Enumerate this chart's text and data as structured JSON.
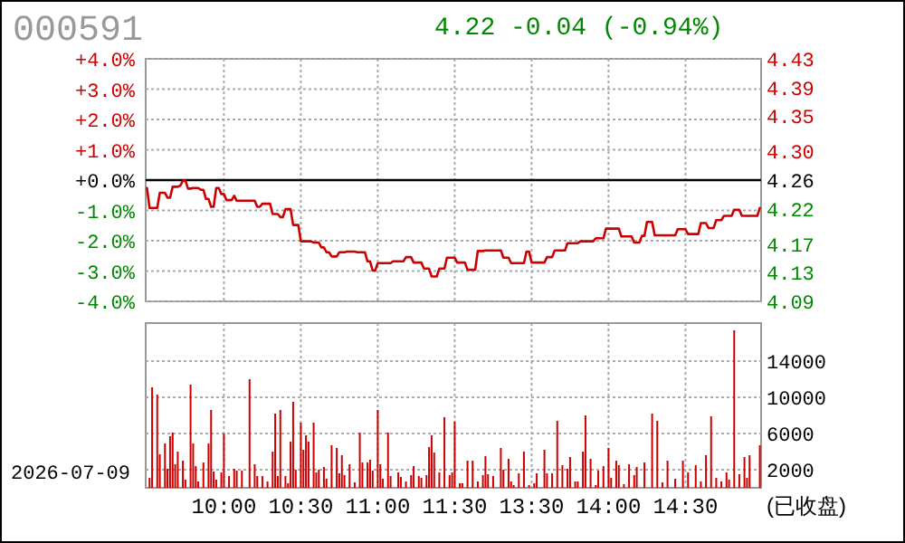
{
  "chart_data": [
    {
      "type": "line",
      "title": "000591",
      "subtitle": "4.22 -0.04 (-0.94%)",
      "categories": [
        null,
        null,
        null,
        null,
        null,
        null,
        null,
        null,
        null,
        null,
        null,
        null,
        null,
        null,
        null,
        null,
        null,
        null,
        null,
        null,
        null,
        null,
        null,
        null,
        null,
        null,
        null,
        null,
        null,
        null,
        null,
        null,
        null,
        null,
        null,
        null,
        null,
        null,
        null,
        null,
        null,
        null,
        null,
        null,
        null,
        null,
        null,
        null,
        null,
        null,
        null,
        null,
        null,
        null,
        null,
        null,
        null,
        null,
        null,
        null,
        null,
        null,
        null,
        null,
        null,
        null,
        null,
        null,
        null,
        null,
        null,
        null,
        null,
        null,
        null,
        null,
        null,
        null,
        null,
        null,
        null,
        null,
        null,
        null,
        null,
        null,
        null,
        null,
        null,
        null,
        null,
        null,
        null,
        null,
        null,
        null,
        null,
        null,
        null,
        null,
        null,
        null,
        null,
        null,
        null,
        null,
        null,
        null,
        null,
        null,
        null,
        null,
        null,
        null,
        null,
        null,
        null,
        null,
        null,
        null,
        null,
        null,
        null,
        null,
        null,
        null,
        null,
        null,
        null,
        null,
        null,
        null,
        null,
        null,
        null,
        null,
        null,
        null,
        null,
        null,
        null,
        null,
        null,
        null,
        null,
        null,
        null,
        null,
        null,
        null,
        null,
        null,
        null,
        null,
        null,
        null,
        null,
        null,
        null,
        null,
        null,
        null,
        null,
        null,
        null,
        null,
        null,
        null,
        null,
        null,
        null,
        null,
        null,
        null,
        null,
        null,
        null,
        null,
        null,
        null,
        null,
        null,
        null,
        null,
        null,
        null,
        null,
        null,
        null,
        null,
        null,
        null,
        null,
        null,
        null,
        null,
        null,
        null,
        null,
        null,
        null,
        null,
        null,
        null,
        null,
        null,
        null,
        null,
        null,
        null,
        null,
        null,
        null,
        null,
        null,
        null,
        null,
        null,
        null,
        null,
        null,
        null,
        null,
        null,
        null,
        null,
        null,
        null,
        null,
        null,
        null,
        null,
        null,
        null,
        null,
        null,
        null,
        null,
        null,
        null
      ],
      "ylim": [
        -4,
        4
      ],
      "yticks": [
        {
          "value": 4,
          "label": "+4.0%"
        },
        {
          "value": 3,
          "label": "+3.0%"
        },
        {
          "value": 2,
          "label": "+2.0%"
        },
        {
          "value": 1,
          "label": "+1.0%"
        },
        {
          "value": 0,
          "label": "+0.0%"
        },
        {
          "value": -1,
          "label": "-1.0%"
        },
        {
          "value": -2,
          "label": "-2.0%"
        },
        {
          "value": -3,
          "label": "-3.0%"
        },
        {
          "value": -4,
          "label": "-4.0%"
        }
      ],
      "y2lim": [
        4.09,
        4.43
      ],
      "y2ticks": [
        4.43,
        4.39,
        4.35,
        {
          "value": 4.3,
          "label": "4.30"
        },
        4.26,
        4.22,
        4.17,
        4.13,
        4.09
      ],
      "tick_labels": "y",
      "grid": true,
      "ref_lines": [
        {
          "axis": "y",
          "value": 0,
          "color": "#000000"
        }
      ],
      "series": [
        {
          "color": "#cc0000",
          "values": [
            -0.26,
            -0.92,
            -0.92,
            -0.92,
            -0.92,
            -0.42,
            -0.42,
            -0.42,
            -0.58,
            -0.58,
            -0.22,
            -0.22,
            -0.22,
            -0.18,
            -0.02,
            -0.02,
            -0.28,
            -0.28,
            -0.26,
            -0.26,
            -0.26,
            -0.32,
            -0.32,
            -0.62,
            -0.62,
            -0.88,
            -0.88,
            -0.26,
            -0.26,
            -0.46,
            -0.46,
            -0.66,
            -0.66,
            -0.66,
            -0.52,
            -0.68,
            -0.68,
            -0.68,
            -0.68,
            -0.68,
            -0.68,
            -0.68,
            -0.68,
            -0.88,
            -0.88,
            -0.78,
            -0.78,
            -0.78,
            -0.78,
            -1.12,
            -1.12,
            -1.12,
            -1.22,
            -1.22,
            -0.96,
            -0.96,
            -0.96,
            -1.48,
            -1.48,
            -1.48,
            -2.02,
            -2.02,
            -2.02,
            -2.02,
            -2.02,
            -2.06,
            -2.06,
            -2.06,
            -2.22,
            -2.22,
            -2.38,
            -2.38,
            -2.52,
            -2.52,
            -2.52,
            -2.38,
            -2.38,
            -2.38,
            -2.36,
            -2.36,
            -2.36,
            -2.36,
            -2.38,
            -2.38,
            -2.38,
            -2.38,
            -2.68,
            -2.68,
            -2.98,
            -2.98,
            -2.74,
            -2.74,
            -2.74,
            -2.74,
            -2.74,
            -2.74,
            -2.68,
            -2.68,
            -2.68,
            -2.68,
            -2.68,
            -2.54,
            -2.54,
            -2.54,
            -2.72,
            -2.72,
            -2.72,
            -2.72,
            -2.92,
            -2.92,
            -2.92,
            -3.18,
            -3.18,
            -3.18,
            -2.92,
            -2.92,
            -2.92,
            -2.56,
            -2.56,
            -2.56,
            -2.56,
            -2.72,
            -2.72,
            -2.72,
            -2.72,
            -2.96,
            -2.96,
            -2.96,
            -2.96,
            -2.34,
            -2.34,
            -2.34,
            -2.32,
            -2.32,
            -2.32,
            -2.32,
            -2.32,
            -2.32,
            -2.32,
            -2.56,
            -2.56,
            -2.56,
            -2.74,
            -2.74,
            -2.74,
            -2.74,
            -2.74,
            -2.74,
            -2.36,
            -2.36,
            -2.72,
            -2.72,
            -2.72,
            -2.72,
            -2.72,
            -2.72,
            -2.54,
            -2.54,
            -2.54,
            -2.32,
            -2.32,
            -2.32,
            -2.32,
            -2.32,
            -2.08,
            -2.08,
            -2.08,
            -2.08,
            -2.08,
            -2.02,
            -2.02,
            -2.02,
            -2.02,
            -2.02,
            -2.02,
            -1.92,
            -1.92,
            -1.92,
            -1.92,
            -1.6,
            -1.6,
            -1.6,
            -1.6,
            -1.6,
            -1.6,
            -1.86,
            -1.86,
            -1.86,
            -1.86,
            -1.86,
            -2.06,
            -2.06,
            -2.06,
            -1.84,
            -1.84,
            -1.38,
            -1.38,
            -1.38,
            -1.82,
            -1.82,
            -1.82,
            -1.82,
            -1.82,
            -1.82,
            -1.82,
            -1.82,
            -1.82,
            -1.62,
            -1.62,
            -1.62,
            -1.62,
            -1.78,
            -1.78,
            -1.78,
            -1.78,
            -1.78,
            -1.42,
            -1.42,
            -1.42,
            -1.58,
            -1.58,
            -1.58,
            -1.32,
            -1.32,
            -1.32,
            -1.18,
            -1.18,
            -1.18,
            -1.18,
            -0.98,
            -0.98,
            -0.98,
            -1.18,
            -1.18,
            -1.18,
            -1.18,
            -1.18,
            -1.18,
            -1.18,
            -0.92
          ]
        }
      ]
    },
    {
      "type": "bar",
      "categories": [
        null,
        null,
        null,
        null,
        null,
        null,
        null,
        null,
        null,
        null,
        null,
        null,
        null,
        null,
        null,
        null,
        null,
        null,
        null,
        null,
        null,
        null,
        null,
        null,
        null,
        null,
        null,
        null,
        null,
        null,
        "10:00",
        null,
        null,
        null,
        null,
        null,
        null,
        null,
        null,
        null,
        null,
        null,
        null,
        null,
        null,
        null,
        null,
        null,
        null,
        null,
        null,
        null,
        null,
        null,
        null,
        null,
        null,
        null,
        null,
        null,
        "10:30",
        null,
        null,
        null,
        null,
        null,
        null,
        null,
        null,
        null,
        null,
        null,
        null,
        null,
        null,
        null,
        null,
        null,
        null,
        null,
        null,
        null,
        null,
        null,
        null,
        null,
        null,
        null,
        null,
        null,
        "11:00",
        null,
        null,
        null,
        null,
        null,
        null,
        null,
        null,
        null,
        null,
        null,
        null,
        null,
        null,
        null,
        null,
        null,
        null,
        null,
        null,
        null,
        null,
        null,
        null,
        null,
        null,
        null,
        null,
        null,
        "11:30",
        null,
        null,
        null,
        null,
        null,
        null,
        null,
        null,
        null,
        null,
        null,
        null,
        null,
        null,
        null,
        null,
        null,
        null,
        null,
        null,
        null,
        null,
        null,
        null,
        null,
        null,
        null,
        null,
        null,
        "13:30",
        null,
        null,
        null,
        null,
        null,
        null,
        null,
        null,
        null,
        null,
        null,
        null,
        null,
        null,
        null,
        null,
        null,
        null,
        null,
        null,
        null,
        null,
        null,
        null,
        null,
        null,
        null,
        null,
        null,
        "14:00",
        null,
        null,
        null,
        null,
        null,
        null,
        null,
        null,
        null,
        null,
        null,
        null,
        null,
        null,
        null,
        null,
        null,
        null,
        null,
        null,
        null,
        null,
        null,
        null,
        null,
        null,
        null,
        null,
        null,
        "14:30",
        null,
        null,
        null,
        null,
        null,
        null,
        null,
        null,
        null,
        null,
        null,
        null,
        null,
        null,
        null,
        null,
        null,
        null,
        null,
        null,
        null,
        null,
        null,
        null,
        null,
        null,
        null,
        null,
        null
      ],
      "y2lim": [
        0,
        18200
      ],
      "y2ticks": [
        2000,
        6000,
        10000,
        14000
      ],
      "grid": true,
      "annotations": [
        "2026-07-09",
        "(已收盘)"
      ],
      "series": [
        {
          "axis": "y2",
          "color": "#cc0000",
          "values": [
            null,
            1100,
            11100,
            null,
            10300,
            3700,
            null,
            4900,
            2100,
            5700,
            6100,
            2600,
            4000,
            null,
            3000,
            900,
            null,
            11400,
            4900,
            2400,
            700,
            null,
            2800,
            null,
            4900,
            8600,
            1800,
            900,
            null,
            1700,
            6000,
            null,
            1300,
            null,
            2100,
            1900,
            null,
            1900,
            null,
            null,
            12000,
            null,
            2600,
            1300,
            null,
            1300,
            null,
            700,
            null,
            4000,
            8200,
            1300,
            8600,
            null,
            1300,
            500,
            5100,
            9500,
            2000,
            null,
            7200,
            4200,
            5800,
            5100,
            null,
            7200,
            1700,
            2000,
            null,
            2300,
            1000,
            null,
            4700,
            null,
            4400,
            1600,
            3600,
            1400,
            null,
            2600,
            null,
            600,
            null,
            6100,
            2800,
            null,
            2800,
            3100,
            1900,
            null,
            8600,
            2600,
            1000,
            null,
            6100,
            1300,
            null,
            null,
            1700,
            1200,
            null,
            700,
            null,
            1400,
            2400,
            null,
            1300,
            1100,
            null,
            1400,
            4500,
            5800,
            3900,
            null,
            1700,
            null,
            7800,
            null,
            1400,
            1700,
            7300,
            null,
            500,
            500,
            null,
            3000,
            null,
            3000,
            null,
            700,
            null,
            1400,
            3500,
            1500,
            null,
            1300,
            null,
            null,
            4400,
            2000,
            null,
            3200,
            700,
            300,
            null,
            1600,
            null,
            4000,
            null,
            300,
            null,
            500,
            1600,
            null,
            null,
            4200,
            1600,
            null,
            1600,
            null,
            7400,
            null,
            2500,
            null,
            2100,
            3400,
            null,
            700,
            700,
            null,
            4000,
            8000,
            null,
            3200,
            null,
            300,
            1900,
            null,
            2400,
            null,
            4400,
            1100,
            null,
            3000,
            2500,
            null,
            400,
            null,
            2600,
            null,
            1400,
            2300,
            null,
            null,
            2800,
            null,
            null,
            8200,
            null,
            7400,
            null,
            600,
            null,
            3000,
            null,
            null,
            1000,
            null,
            null,
            3000,
            null,
            1700,
            null,
            null,
            2500,
            null,
            700,
            null,
            3600,
            null,
            7900,
            null,
            1100,
            null,
            700,
            null,
            1700,
            900,
            null,
            17400,
            null,
            1500,
            null,
            3400,
            1100,
            3600,
            null,
            null,
            null,
            4700
          ]
        }
      ]
    }
  ]
}
